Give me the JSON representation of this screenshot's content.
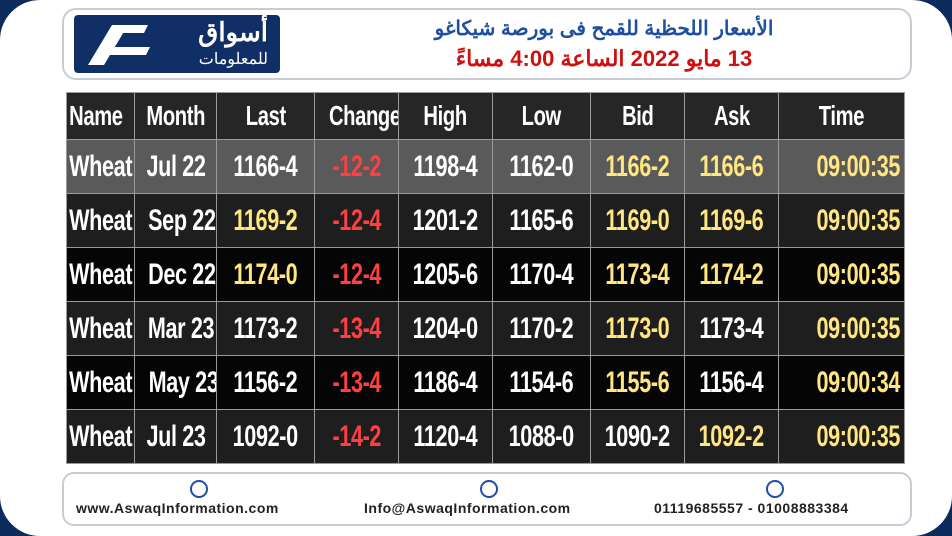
{
  "header": {
    "logo_top": "أسواق",
    "logo_bottom": "للمعلومات",
    "title": "الأسعار اللحظية للقمح فى بورصة شيكاغو",
    "subtitle": "13 مايو 2022 الساعة 4:00 مساءً",
    "title_color": "#1f4fa0",
    "subtitle_color": "#d01010"
  },
  "table": {
    "columns": [
      "Name",
      "Month",
      "Last",
      "Change",
      "High",
      "Low",
      "Bid",
      "Ask",
      "Time"
    ],
    "rows": [
      [
        "Wheat",
        "Jul 22",
        "1166-4",
        "-12-2",
        "1198-4",
        "1162-0",
        "1166-2",
        "1166-6",
        "09:00:35"
      ],
      [
        "Wheat",
        "Sep 22",
        "1169-2",
        "-12-4",
        "1201-2",
        "1165-6",
        "1169-0",
        "1169-6",
        "09:00:35"
      ],
      [
        "Wheat",
        "Dec 22",
        "1174-0",
        "-12-4",
        "1205-6",
        "1170-4",
        "1173-4",
        "1174-2",
        "09:00:35"
      ],
      [
        "Wheat",
        "Mar 23",
        "1173-2",
        "-13-4",
        "1204-0",
        "1170-2",
        "1173-0",
        "1173-4",
        "09:00:35"
      ],
      [
        "Wheat",
        "May 23",
        "1156-2",
        "-13-4",
        "1186-4",
        "1154-6",
        "1155-6",
        "1156-4",
        "09:00:34"
      ],
      [
        "Wheat",
        "Jul 23",
        "1092-0",
        "-14-2",
        "1120-4",
        "1088-0",
        "1090-2",
        "1092-2",
        "09:00:35"
      ]
    ],
    "colors": [
      [
        "#ffffff",
        "#ffffff",
        "#ffffff",
        "#ff4040",
        "#ffffff",
        "#ffffff",
        "#ffe680",
        "#ffe680",
        "#ffe680"
      ],
      [
        "#ffffff",
        "#ffffff",
        "#ffe680",
        "#ff4040",
        "#ffffff",
        "#ffffff",
        "#ffe680",
        "#ffe680",
        "#ffe680"
      ],
      [
        "#ffffff",
        "#ffffff",
        "#ffe680",
        "#ff4040",
        "#ffffff",
        "#ffffff",
        "#ffe680",
        "#ffe680",
        "#ffe680"
      ],
      [
        "#ffffff",
        "#ffffff",
        "#ffffff",
        "#ff4040",
        "#ffffff",
        "#ffffff",
        "#ffe680",
        "#ffffff",
        "#ffe680"
      ],
      [
        "#ffffff",
        "#ffffff",
        "#ffffff",
        "#ff4040",
        "#ffffff",
        "#ffffff",
        "#ffe680",
        "#ffffff",
        "#ffe680"
      ],
      [
        "#ffffff",
        "#ffffff",
        "#ffffff",
        "#ff4040",
        "#ffffff",
        "#ffffff",
        "#ffffff",
        "#ffe680",
        "#ffe680"
      ]
    ],
    "row_backgrounds": [
      "#5a5a5a",
      "#1e1e1e",
      "#050505",
      "#1e1e1e",
      "#050505",
      "#1e1e1e"
    ]
  },
  "footer": {
    "website": "www.AswaqInformation.com",
    "email": "Info@AswaqInformation.com",
    "phones": "01119685557 - 01008883384"
  }
}
